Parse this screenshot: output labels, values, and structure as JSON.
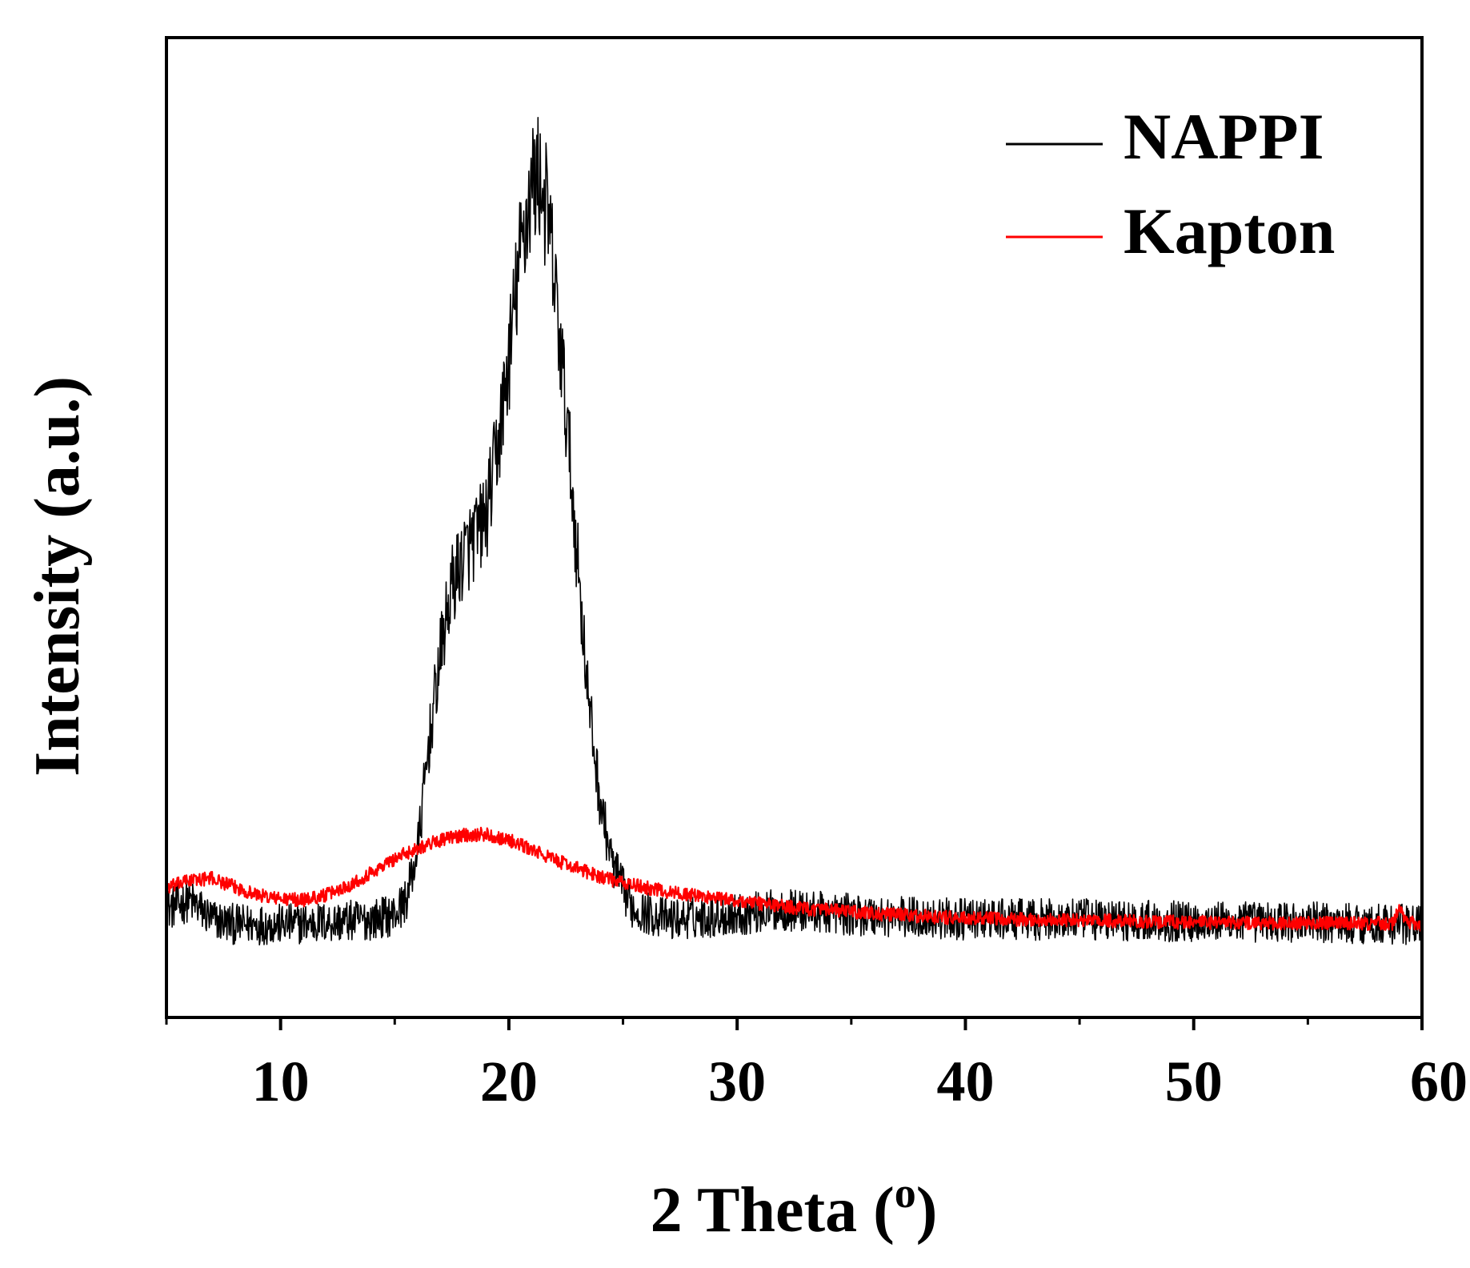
{
  "chart_data": {
    "type": "line",
    "xlabel": "2 Theta (",
    "xlabel_sup": "o",
    "xlabel_end": ")",
    "ylabel": "Intensity (a.u.)",
    "xlim": [
      5,
      60
    ],
    "ylim": [
      0,
      100
    ],
    "xticks": [
      10,
      20,
      30,
      40,
      50,
      60
    ],
    "xtick_labels": [
      "10",
      "20",
      "30",
      "40",
      "50",
      "60"
    ],
    "minor_xticks": [
      5,
      15,
      25,
      35,
      45,
      55
    ],
    "grid": false,
    "legend_position": "top-right",
    "y_ticks_shown": false,
    "series": [
      {
        "name": "NAPPI",
        "color": "#000000",
        "noise": 2.5,
        "points": [
          [
            5,
            11
          ],
          [
            6,
            12
          ],
          [
            7,
            10
          ],
          [
            8,
            9.5
          ],
          [
            10,
            9.5
          ],
          [
            12,
            9.7
          ],
          [
            14,
            10
          ],
          [
            15,
            10.5
          ],
          [
            15.5,
            12
          ],
          [
            16,
            17
          ],
          [
            16.5,
            28
          ],
          [
            17,
            37
          ],
          [
            17.5,
            44
          ],
          [
            18,
            47
          ],
          [
            18.5,
            49
          ],
          [
            19,
            51
          ],
          [
            19.5,
            58
          ],
          [
            20,
            67
          ],
          [
            20.5,
            78
          ],
          [
            21,
            85
          ],
          [
            21.3,
            86
          ],
          [
            21.7,
            82
          ],
          [
            22,
            75
          ],
          [
            22.5,
            62
          ],
          [
            23,
            47
          ],
          [
            23.5,
            32
          ],
          [
            24,
            22
          ],
          [
            24.5,
            16
          ],
          [
            25,
            13
          ],
          [
            25.5,
            11
          ],
          [
            27,
            10
          ],
          [
            30,
            10.5
          ],
          [
            32,
            11
          ],
          [
            35,
            10.5
          ],
          [
            40,
            10
          ],
          [
            45,
            10
          ],
          [
            50,
            9.8
          ],
          [
            55,
            9.7
          ],
          [
            60,
            9.5
          ]
        ]
      },
      {
        "name": "Kapton",
        "color": "#ff0000",
        "noise": 0.7,
        "points": [
          [
            5,
            13.2
          ],
          [
            6,
            14
          ],
          [
            7,
            14.2
          ],
          [
            8,
            13.3
          ],
          [
            9,
            12.5
          ],
          [
            10,
            12.1
          ],
          [
            11,
            12
          ],
          [
            12,
            12.5
          ],
          [
            13,
            13.5
          ],
          [
            14,
            14.8
          ],
          [
            15,
            16.2
          ],
          [
            16,
            17.3
          ],
          [
            17,
            18.1
          ],
          [
            18,
            18.6
          ],
          [
            19,
            18.7
          ],
          [
            20,
            18.1
          ],
          [
            21,
            17.1
          ],
          [
            22,
            16.1
          ],
          [
            23,
            15.2
          ],
          [
            24,
            14.4
          ],
          [
            25,
            13.7
          ],
          [
            27,
            12.8
          ],
          [
            30,
            11.9
          ],
          [
            33,
            11.1
          ],
          [
            36,
            10.6
          ],
          [
            40,
            10.1
          ],
          [
            45,
            9.9
          ],
          [
            50,
            9.7
          ],
          [
            55,
            9.6
          ],
          [
            58.7,
            9.6
          ],
          [
            59,
            11
          ],
          [
            59.3,
            9.7
          ],
          [
            60,
            9.5
          ]
        ]
      }
    ]
  }
}
